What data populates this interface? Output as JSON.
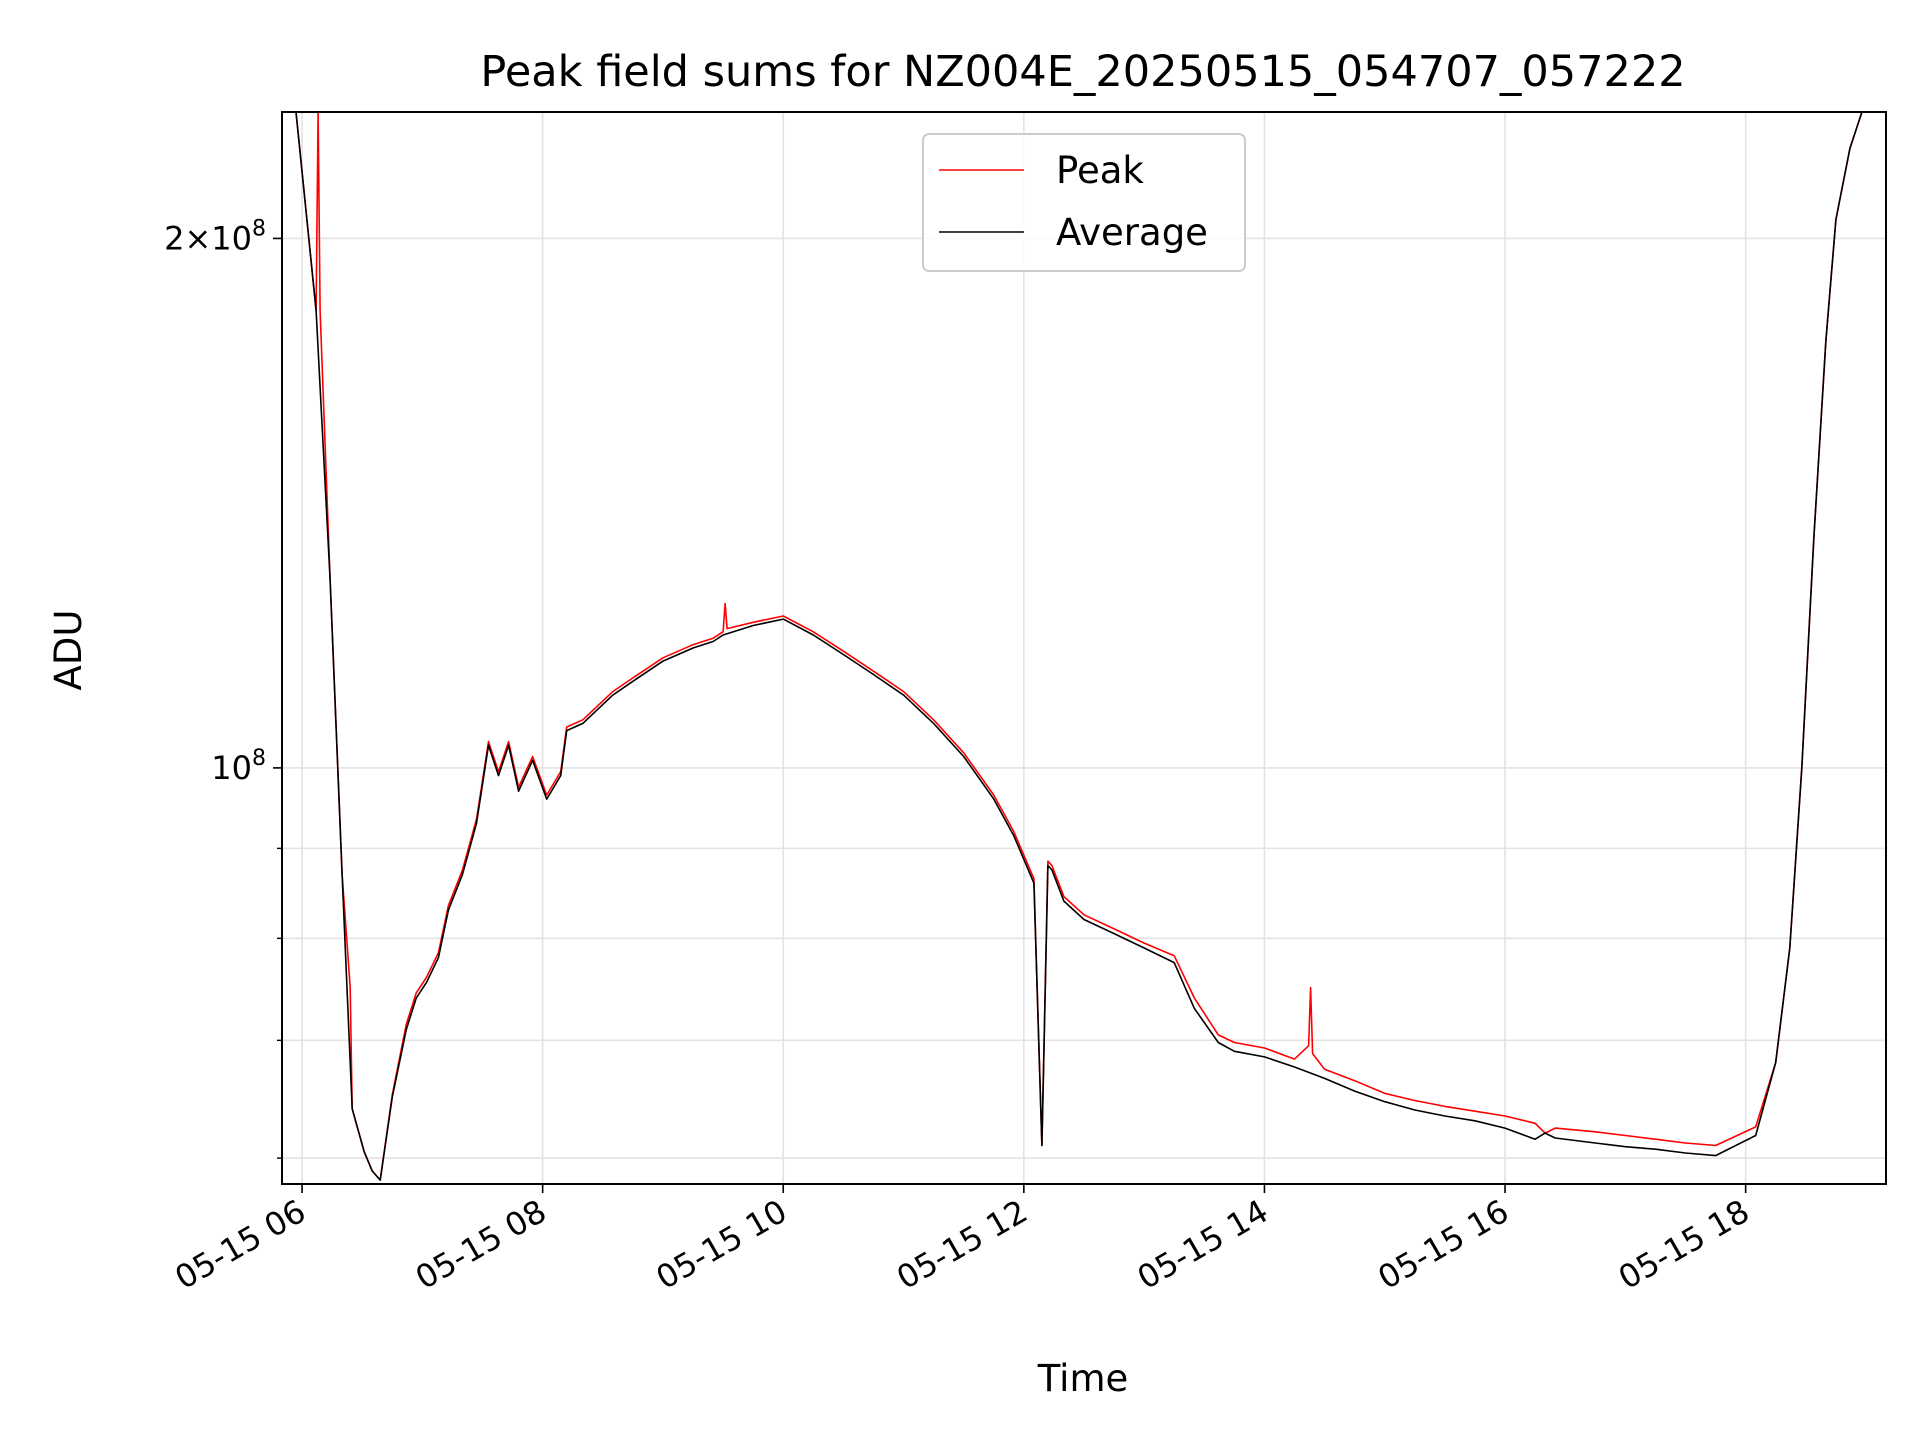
{
  "chart_data": {
    "type": "line",
    "title": "Peak field sums for NZ004E_20250515_054707_057222",
    "xlabel": "Time",
    "ylabel": "ADU",
    "y_scale": "log",
    "grid": true,
    "legend_position": "upper center",
    "xlim": [
      "2025-05-15 05:50",
      "2025-05-15 19:10"
    ],
    "ylim": [
      58000000,
      236000000
    ],
    "x_ticks": [
      "05-15 06",
      "05-15 08",
      "05-15 10",
      "05-15 12",
      "05-15 14",
      "05-15 16",
      "05-15 18"
    ],
    "y_tick_labels": [
      "10^8",
      "2×10^8"
    ],
    "colors": {
      "peak": "#ff0000",
      "average": "#000000"
    },
    "series": [
      {
        "name": "Average",
        "x": [
          "05:57",
          "06:07",
          "06:14",
          "06:20",
          "06:25",
          "06:31",
          "06:35",
          "06:39",
          "06:45",
          "06:52",
          "06:57",
          "07:02",
          "07:08",
          "07:13",
          "07:20",
          "07:27",
          "07:33",
          "07:38",
          "07:43",
          "07:48",
          "07:55",
          "08:02",
          "08:09",
          "08:12",
          "08:20",
          "08:35",
          "08:45",
          "09:00",
          "09:15",
          "09:25",
          "09:30",
          "09:45",
          "10:00",
          "10:15",
          "10:30",
          "10:45",
          "11:00",
          "11:15",
          "11:30",
          "11:45",
          "11:55",
          "12:05",
          "12:09",
          "12:12",
          "12:14",
          "12:20",
          "12:30",
          "12:45",
          "13:00",
          "13:15",
          "13:25",
          "13:37",
          "13:45",
          "14:00",
          "14:15",
          "14:30",
          "14:45",
          "15:00",
          "15:15",
          "15:30",
          "15:45",
          "16:00",
          "16:15",
          "16:20",
          "16:25",
          "16:45",
          "17:00",
          "17:15",
          "17:30",
          "17:45",
          "18:05",
          "18:15",
          "18:22",
          "18:28",
          "18:34",
          "18:40",
          "18:45",
          "18:52",
          "18:58"
        ],
        "y": [
          236000000,
          182000000,
          128000000,
          87000000,
          64000000,
          60500000,
          59000000,
          58300000,
          65000000,
          71000000,
          74000000,
          75500000,
          78000000,
          83000000,
          87000000,
          93000000,
          103000000,
          99000000,
          103000000,
          97000000,
          101000000,
          96000000,
          99000000,
          105000000,
          106000000,
          110000000,
          112000000,
          115000000,
          117000000,
          118000000,
          119000000,
          120500000,
          121500000,
          119000000,
          116000000,
          113000000,
          110000000,
          106000000,
          101500000,
          96000000,
          91500000,
          86000000,
          61000000,
          88000000,
          87500000,
          84000000,
          82000000,
          80500000,
          79000000,
          77500000,
          73000000,
          69800000,
          69000000,
          68500000,
          67600000,
          66600000,
          65500000,
          64600000,
          63900000,
          63400000,
          63000000,
          62400000,
          61500000,
          62000000,
          61600000,
          61200000,
          60900000,
          60700000,
          60400000,
          60200000,
          61800000,
          68000000,
          79000000,
          100000000,
          135000000,
          175000000,
          205000000,
          225000000,
          236000000
        ]
      },
      {
        "name": "Peak",
        "x": [
          "05:57",
          "06:07",
          "06:08",
          "06:09",
          "06:14",
          "06:20",
          "06:24",
          "06:25",
          "06:31",
          "06:35",
          "06:39",
          "06:45",
          "06:52",
          "06:57",
          "07:02",
          "07:08",
          "07:13",
          "07:20",
          "07:27",
          "07:33",
          "07:38",
          "07:43",
          "07:48",
          "07:55",
          "08:02",
          "08:09",
          "08:12",
          "08:20",
          "08:35",
          "08:45",
          "09:00",
          "09:15",
          "09:25",
          "09:30",
          "09:31",
          "09:32",
          "09:45",
          "10:00",
          "10:15",
          "10:30",
          "10:45",
          "11:00",
          "11:15",
          "11:30",
          "11:45",
          "11:55",
          "12:05",
          "12:09",
          "12:12",
          "12:14",
          "12:20",
          "12:30",
          "12:45",
          "13:00",
          "13:15",
          "13:25",
          "13:37",
          "13:45",
          "14:00",
          "14:15",
          "14:22",
          "14:23",
          "14:24",
          "14:30",
          "14:45",
          "15:00",
          "15:15",
          "15:30",
          "15:45",
          "16:00",
          "16:15",
          "16:20",
          "16:25",
          "16:45",
          "17:00",
          "17:15",
          "17:30",
          "17:45",
          "18:05",
          "18:15",
          "18:22",
          "18:28",
          "18:34",
          "18:40",
          "18:45",
          "18:52",
          "18:58"
        ],
        "y": [
          236000000,
          182000000,
          236000000,
          182000000,
          128000000,
          87000000,
          75000000,
          64000000,
          60500000,
          59000000,
          58300000,
          65200000,
          71500000,
          74500000,
          76000000,
          78500000,
          83500000,
          87500000,
          93500000,
          103500000,
          99500000,
          103500000,
          97500000,
          101500000,
          96500000,
          99500000,
          105500000,
          106500000,
          110500000,
          112500000,
          115500000,
          117500000,
          118500000,
          119500000,
          124000000,
          120000000,
          121000000,
          122000000,
          119500000,
          116500000,
          113500000,
          110500000,
          106500000,
          102000000,
          96500000,
          92000000,
          86500000,
          61000000,
          88500000,
          88000000,
          84500000,
          82500000,
          81000000,
          79500000,
          78200000,
          74000000,
          70500000,
          69800000,
          69300000,
          68300000,
          69500000,
          75000000,
          68800000,
          67400000,
          66400000,
          65300000,
          64700000,
          64200000,
          63800000,
          63400000,
          62800000,
          62000000,
          62400000,
          62100000,
          61800000,
          61500000,
          61200000,
          61000000,
          62500000,
          68000000,
          79000000,
          100000000,
          135000000,
          175000000,
          205000000,
          225000000,
          236000000
        ]
      }
    ]
  }
}
